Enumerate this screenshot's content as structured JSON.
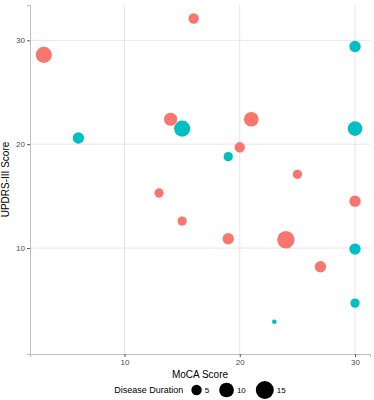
{
  "chart_data": {
    "type": "scatter",
    "x_label": "MoCA Score",
    "y_label": "UPDRS-III Score",
    "xlim": [
      1.8,
      31.3
    ],
    "ylim": [
      -0.2,
      33.4
    ],
    "xticks": [
      10,
      20,
      30
    ],
    "yticks": [
      10,
      20,
      30
    ],
    "grid": true,
    "size_legend": {
      "title": "Disease Duration",
      "values": [
        5,
        10,
        15
      ]
    },
    "series": [
      {
        "color": "#F8766D",
        "x": [
          3,
          16,
          14,
          21,
          20,
          25,
          13,
          30,
          15,
          19,
          24,
          27
        ],
        "values": [
          28.6,
          32.1,
          22.4,
          22.4,
          19.7,
          17.1,
          15.3,
          14.5,
          12.6,
          10.9,
          10.8,
          8.2
        ],
        "sizes": [
          12,
          5,
          8,
          10,
          5,
          4,
          4,
          6,
          4,
          6,
          14,
          6
        ]
      },
      {
        "color": "#00BFC4",
        "x": [
          30,
          15,
          6,
          19,
          30,
          30,
          30,
          23
        ],
        "values": [
          29.4,
          21.5,
          20.6,
          18.8,
          21.5,
          9.9,
          4.7,
          2.9
        ],
        "sizes": [
          6,
          12,
          6,
          4,
          10,
          6,
          4,
          1
        ]
      }
    ]
  }
}
